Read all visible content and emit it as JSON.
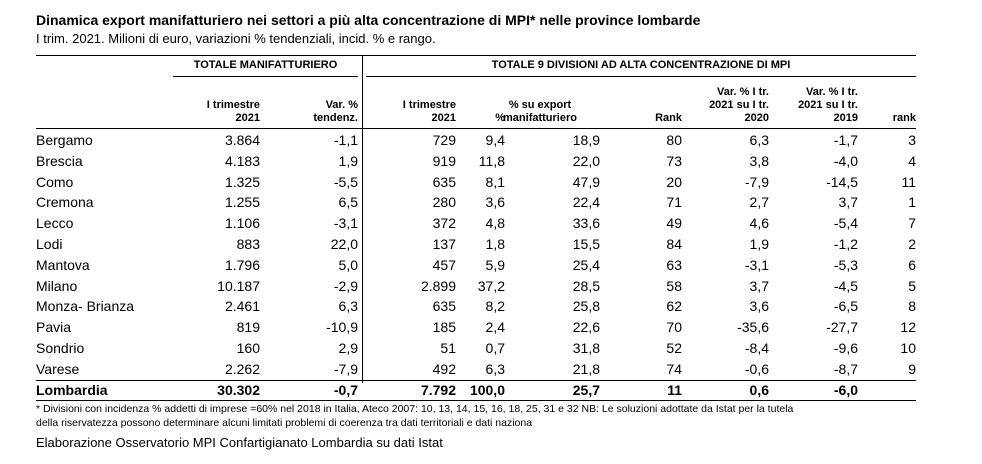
{
  "title": "Dinamica export manifatturiero nei settori a più alta concentrazione di MPI* nelle province lombarde",
  "subtitle": "I trim. 2021. Milioni di euro, variazioni % tendenziali, incid. % e rango.",
  "groups": {
    "total_manufacturing": "TOTALE MANIFATTURIERO",
    "top9": "TOTALE 9 DIVISIONI AD ALTA CONCENTRAZIONE DI MPI"
  },
  "columns": [
    "I trimestre\n2021",
    "Var. %\ntendenz.",
    "I trimestre\n2021",
    "%",
    "% su export\nmanifatturiero",
    "Rank",
    "Var. % I tr.\n2021 su I tr.\n2020",
    "Var. % I tr.\n2021 su I tr.\n2019",
    "rank"
  ],
  "rows": [
    {
      "name": "Bergamo",
      "v": [
        "3.864",
        "-1,1",
        "729",
        "9,4",
        "18,9",
        "80",
        "6,3",
        "-1,7",
        "3"
      ]
    },
    {
      "name": "Brescia",
      "v": [
        "4.183",
        "1,9",
        "919",
        "11,8",
        "22,0",
        "73",
        "3,8",
        "-4,0",
        "4"
      ]
    },
    {
      "name": "Como",
      "v": [
        "1.325",
        "-5,5",
        "635",
        "8,1",
        "47,9",
        "20",
        "-7,9",
        "-14,5",
        "11"
      ]
    },
    {
      "name": "Cremona",
      "v": [
        "1.255",
        "6,5",
        "280",
        "3,6",
        "22,4",
        "71",
        "2,7",
        "3,7",
        "1"
      ]
    },
    {
      "name": "Lecco",
      "v": [
        "1.106",
        "-3,1",
        "372",
        "4,8",
        "33,6",
        "49",
        "4,6",
        "-5,4",
        "7"
      ]
    },
    {
      "name": "Lodi",
      "v": [
        "883",
        "22,0",
        "137",
        "1,8",
        "15,5",
        "84",
        "1,9",
        "-1,2",
        "2"
      ]
    },
    {
      "name": "Mantova",
      "v": [
        "1.796",
        "5,0",
        "457",
        "5,9",
        "25,4",
        "63",
        "-3,1",
        "-5,3",
        "6"
      ]
    },
    {
      "name": "Milano",
      "v": [
        "10.187",
        "-2,9",
        "2.899",
        "37,2",
        "28,5",
        "58",
        "3,7",
        "-4,5",
        "5"
      ]
    },
    {
      "name": "Monza- Brianza",
      "v": [
        "2.461",
        "6,3",
        "635",
        "8,2",
        "25,8",
        "62",
        "3,6",
        "-6,5",
        "8"
      ]
    },
    {
      "name": "Pavia",
      "v": [
        "819",
        "-10,9",
        "185",
        "2,4",
        "22,6",
        "70",
        "-35,6",
        "-27,7",
        "12"
      ]
    },
    {
      "name": "Sondrio",
      "v": [
        "160",
        "2,9",
        "51",
        "0,7",
        "31,8",
        "52",
        "-8,4",
        "-9,6",
        "10"
      ]
    },
    {
      "name": "Varese",
      "v": [
        "2.262",
        "-7,9",
        "492",
        "6,3",
        "21,8",
        "74",
        "-0,6",
        "-8,7",
        "9"
      ]
    }
  ],
  "total": {
    "name": "Lombardia",
    "v": [
      "30.302",
      "-0,7",
      "7.792",
      "100,0",
      "25,7",
      "11",
      "0,6",
      "-6,0",
      ""
    ]
  },
  "footnotes": [
    "* Divisioni con incidenza % addetti di imprese =60% nel 2018 in Italia, Ateco 2007: 10, 13, 14, 15, 16, 18, 25, 31 e 32 NB: Le soluzioni adottate da Istat per la tutela",
    "della riservatezza possono determinare alcuni limitati problemi di coerenza tra dati territoriali e dati naziona"
  ],
  "source": "Elaborazione Osservatorio MPI Confartigianato Lombardia su dati Istat"
}
